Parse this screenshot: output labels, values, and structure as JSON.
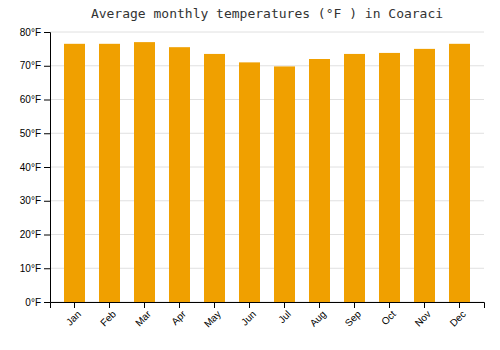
{
  "chart_data": {
    "type": "bar",
    "title": "Average monthly temperatures (°F ) in Coaraci",
    "categories": [
      "Jan",
      "Feb",
      "Mar",
      "Apr",
      "May",
      "Jun",
      "Jul",
      "Aug",
      "Sep",
      "Oct",
      "Nov",
      "Dec"
    ],
    "values": [
      76.5,
      76.5,
      77.0,
      75.5,
      73.5,
      71.0,
      69.8,
      72.0,
      73.5,
      73.8,
      75.0,
      76.5
    ],
    "color": "#F0A000",
    "ylim": [
      0,
      80
    ],
    "yticks": [
      {
        "value": 0,
        "label": "0°F"
      },
      {
        "value": 10,
        "label": "10°F"
      },
      {
        "value": 20,
        "label": "20°F"
      },
      {
        "value": 30,
        "label": "30°F"
      },
      {
        "value": 40,
        "label": "40°F"
      },
      {
        "value": 50,
        "label": "50°F"
      },
      {
        "value": 60,
        "label": "60°F"
      },
      {
        "value": 70,
        "label": "70°F"
      },
      {
        "value": 80,
        "label": "80°F"
      }
    ],
    "grid": true
  }
}
